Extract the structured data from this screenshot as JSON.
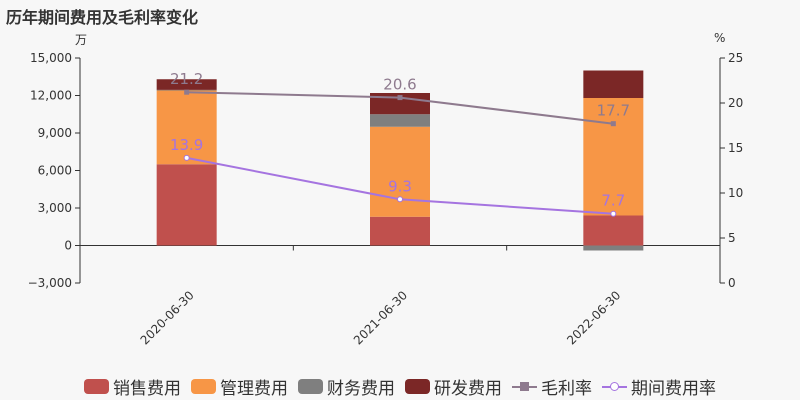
{
  "title": "历年期间费用及毛利率变化",
  "left_unit": "万",
  "right_unit": "%",
  "chart_data": {
    "type": "bar",
    "title": "历年期间费用及毛利率变化",
    "categories": [
      "2020-06-30",
      "2021-06-30",
      "2022-06-30"
    ],
    "stacked": true,
    "series": [
      {
        "name": "销售费用",
        "type": "bar",
        "axis": "left",
        "color": "#c0504d",
        "values": [
          6500,
          2300,
          2400
        ]
      },
      {
        "name": "管理费用",
        "type": "bar",
        "axis": "left",
        "color": "#f79646",
        "values": [
          5900,
          7200,
          9400
        ]
      },
      {
        "name": "财务费用",
        "type": "bar",
        "axis": "left",
        "color": "#7f7f7f",
        "values": [
          50,
          1000,
          -400
        ]
      },
      {
        "name": "研发费用",
        "type": "bar",
        "axis": "left",
        "color": "#7b2726",
        "values": [
          850,
          1700,
          2200
        ]
      },
      {
        "name": "毛利率",
        "type": "line",
        "axis": "right",
        "color": "#8e7a8e",
        "marker": "square",
        "values": [
          21.2,
          20.6,
          17.7
        ],
        "labels": [
          "21.2",
          "20.6",
          "17.7"
        ]
      },
      {
        "name": "期间费用率",
        "type": "line",
        "axis": "right",
        "color": "#a574e0",
        "marker": "circle",
        "values": [
          13.9,
          9.3,
          7.7
        ],
        "labels": [
          "13.9",
          "9.3",
          "7.7"
        ]
      }
    ],
    "left_axis": {
      "min": -3000,
      "max": 15000,
      "ticks": [
        -3000,
        0,
        3000,
        6000,
        9000,
        12000,
        15000
      ],
      "tick_labels": [
        "−3,000",
        "0",
        "3,000",
        "6,000",
        "9,000",
        "12,000",
        "15,000"
      ]
    },
    "right_axis": {
      "min": 0,
      "max": 25,
      "ticks": [
        0,
        5,
        10,
        15,
        20,
        25
      ],
      "tick_labels": [
        "0",
        "5",
        "10",
        "15",
        "20",
        "25"
      ]
    },
    "grid": false,
    "legend_position": "bottom"
  }
}
